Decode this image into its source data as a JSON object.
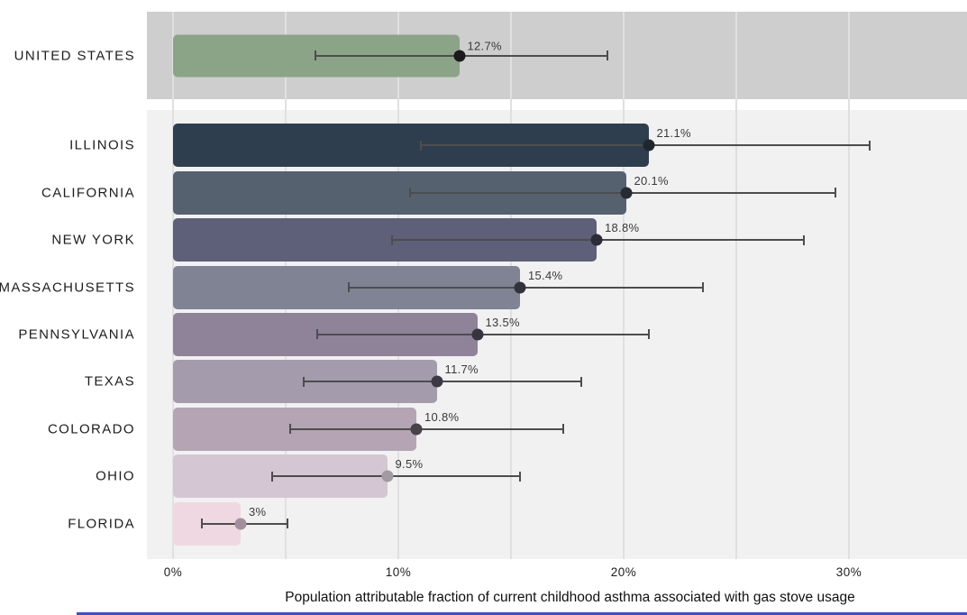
{
  "chart_data": {
    "type": "bar",
    "orientation": "horizontal",
    "title": "",
    "xlabel": "Population attributable fraction of current childhood asthma associated with gas stove usage",
    "ylabel": "",
    "xlim": [
      0,
      35.24
    ],
    "axis_max": 35.24,
    "grid": "vertical, every 5%",
    "gridline_values": [
      0,
      5,
      10,
      15,
      20,
      25,
      30
    ],
    "x_ticks": [
      {
        "label": "0%",
        "value": 0
      },
      {
        "label": "10%",
        "value": 10
      },
      {
        "label": "20%",
        "value": 20
      },
      {
        "label": "30%",
        "value": 30
      }
    ],
    "groups": [
      {
        "name": "national",
        "panel_bg": "#cecece",
        "rows": [
          {
            "label": "UNITED STATES",
            "value": 12.7,
            "display": "12.7%",
            "ci_low": 6.3,
            "ci_high": 19.3,
            "bar_color": "#8ba487",
            "dot_color": "#1b1b1b"
          }
        ]
      },
      {
        "name": "states",
        "panel_bg": "#f1f1f1",
        "rows": [
          {
            "label": "ILLINOIS",
            "value": 21.1,
            "display": "21.1%",
            "ci_low": 11.0,
            "ci_high": 30.9,
            "bar_color": "#2f3e4e",
            "dot_color": "#20262e"
          },
          {
            "label": "CALIFORNIA",
            "value": 20.1,
            "display": "20.1%",
            "ci_low": 10.5,
            "ci_high": 29.4,
            "bar_color": "#55616f",
            "dot_color": "#272b33"
          },
          {
            "label": "NEW YORK",
            "value": 18.8,
            "display": "18.8%",
            "ci_low": 9.7,
            "ci_high": 28.0,
            "bar_color": "#5e5f78",
            "dot_color": "#2b2c38"
          },
          {
            "label": "MASSACHUSETTS",
            "value": 15.4,
            "display": "15.4%",
            "ci_low": 7.8,
            "ci_high": 23.5,
            "bar_color": "#808394",
            "dot_color": "#31323c"
          },
          {
            "label": "PENNSYLVANIA",
            "value": 13.5,
            "display": "13.5%",
            "ci_low": 6.4,
            "ci_high": 21.1,
            "bar_color": "#8e8399",
            "dot_color": "#373440"
          },
          {
            "label": "TEXAS",
            "value": 11.7,
            "display": "11.7%",
            "ci_low": 5.8,
            "ci_high": 18.1,
            "bar_color": "#a49bad",
            "dot_color": "#3c3944"
          },
          {
            "label": "COLORADO",
            "value": 10.8,
            "display": "10.8%",
            "ci_low": 5.2,
            "ci_high": 17.3,
            "bar_color": "#b4a4b4",
            "dot_color": "#474149"
          },
          {
            "label": "OHIO",
            "value": 9.5,
            "display": "9.5%",
            "ci_low": 4.4,
            "ci_high": 15.4,
            "bar_color": "#d4c6d2",
            "dot_color": "#a29aa2"
          },
          {
            "label": "FLORIDA",
            "value": 3.0,
            "display": "3%",
            "ci_low": 1.3,
            "ci_high": 5.1,
            "bar_color": "#f0d8e3",
            "dot_color": "#a28f9d"
          }
        ]
      }
    ],
    "legend": "none",
    "error_bar_color": "#4d4d4d",
    "gridline_color": "#e0e0e0"
  },
  "decor": {
    "bottom_strip_color": "#3a52c4"
  }
}
